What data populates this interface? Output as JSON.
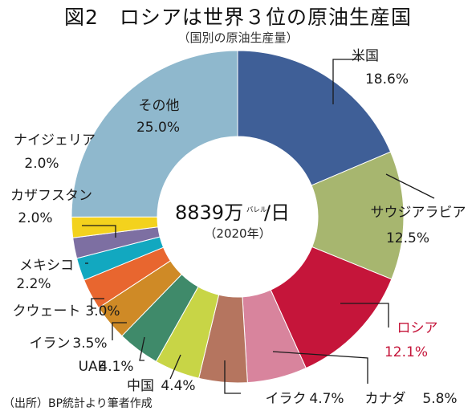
{
  "title": "図2　ロシアは世界３位の原油生産国",
  "subtitle": "（国別の原油生産量）",
  "source": "（出所）BP統計より筆者作成",
  "center": {
    "value": "8839万",
    "unit_small": "バレル",
    "unit_day": "/日",
    "year": "（2020年）"
  },
  "chart_data": {
    "type": "pie",
    "title": "図2　ロシアは世界３位の原油生産国",
    "subtitle": "（国別の原油生産量）",
    "total": "8839万バレル/日（2020年）",
    "unit": "%",
    "categories": [
      "米国",
      "サウジアラビア",
      "ロシア",
      "カナダ",
      "イラク",
      "中国",
      "UAE",
      "イラン",
      "クウェート",
      "メキシコ",
      "カザフスタン",
      "ナイジェリア",
      "その他"
    ],
    "values": [
      18.6,
      12.5,
      12.1,
      5.8,
      4.7,
      4.4,
      4.1,
      3.5,
      3.0,
      2.2,
      2.0,
      2.0,
      25.0
    ],
    "value_labels": [
      "18.6%",
      "12.5%",
      "12.1%",
      "5.8%",
      "4.7%",
      "4.4%",
      "4.1%",
      "3.5%",
      "3.0%",
      "2.2%",
      "2.0%",
      "2.0%",
      "25.0%"
    ],
    "colors": [
      "#3f5f97",
      "#a7b66f",
      "#c5153a",
      "#d8849d",
      "#b5755f",
      "#c8d546",
      "#3f8a6a",
      "#cf8a26",
      "#e8662f",
      "#12a8c0",
      "#7d6fa2",
      "#f3d21d",
      "#8fb8cd"
    ],
    "label_color_highlight": "#c5153a",
    "highlight": "ロシア",
    "start": "12 o'clock",
    "direction": "clockwise"
  }
}
